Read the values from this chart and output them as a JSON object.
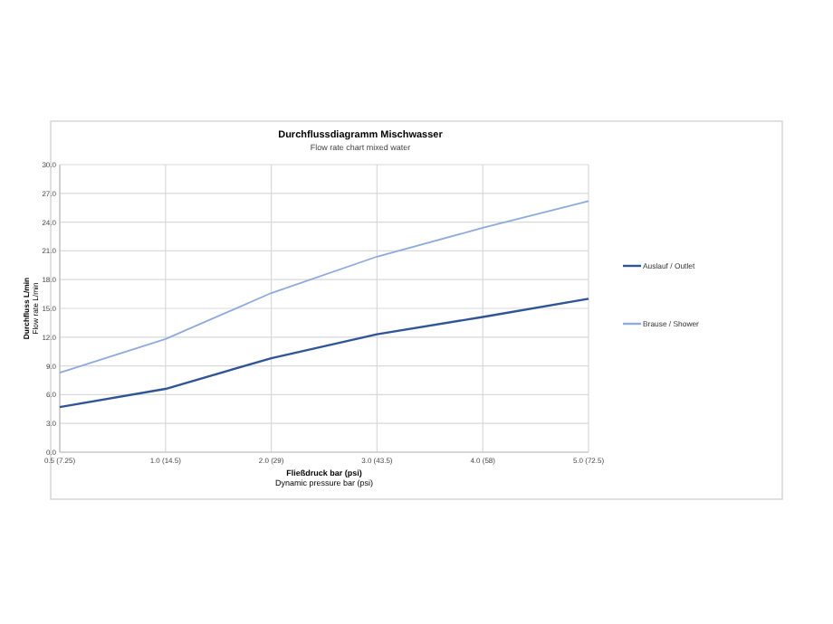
{
  "chart_data": {
    "type": "line",
    "title": "Durchflussdiagramm Mischwasser",
    "subtitle": "Flow rate chart mixed water",
    "xlabel": "Fließdruck bar (psi)\nDynamic pressure bar (psi)",
    "ylabel": "Durchfluss L/min\nFlow rate L/min",
    "categories": [
      "0.5 (7.25)",
      "1.0 (14.5)",
      "2.0 (29)",
      "3.0 (43.5)",
      "4.0 (58)",
      "5.0 (72.5)"
    ],
    "series": [
      {
        "name": "Auslauf / Outlet",
        "color": "#2f5597",
        "values": [
          4.7,
          6.6,
          9.8,
          12.3,
          14.1,
          16.0
        ]
      },
      {
        "name": "Brause / Shower",
        "color": "#8faadc",
        "values": [
          8.3,
          11.8,
          16.6,
          20.4,
          23.4,
          26.2
        ]
      }
    ],
    "ylim": [
      0,
      30
    ],
    "yticks": [
      {
        "value": 0,
        "label": "0.0"
      },
      {
        "value": 3,
        "label": "3.0"
      },
      {
        "value": 6,
        "label": "6.0"
      },
      {
        "value": 9,
        "label": "9.0"
      },
      {
        "value": 12,
        "label": "12.0"
      },
      {
        "value": 15,
        "label": "15.0"
      },
      {
        "value": 18,
        "label": "18.0"
      },
      {
        "value": 21,
        "label": "21.0"
      },
      {
        "value": 24,
        "label": "24.0"
      },
      {
        "value": 27,
        "label": "27.0"
      },
      {
        "value": 30,
        "label": "30.0"
      }
    ],
    "grid": true,
    "legend": "right",
    "marker": "none",
    "line_style": "solid"
  }
}
